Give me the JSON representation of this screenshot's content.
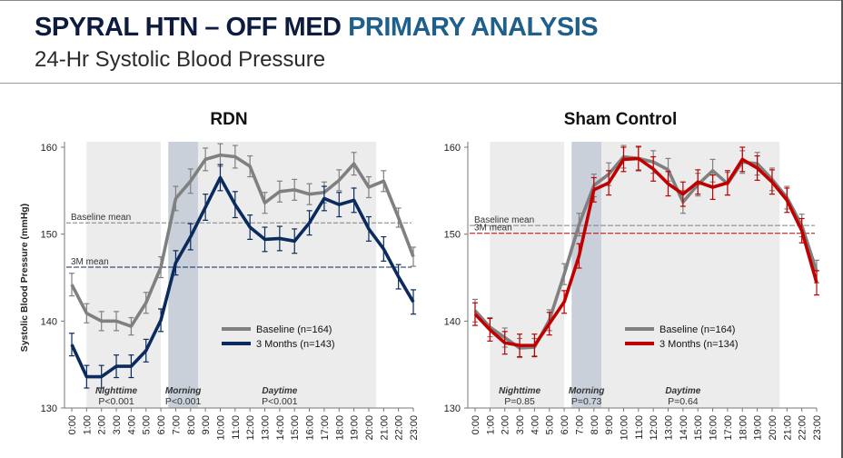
{
  "header": {
    "title_main": "SPYRAL HTN – OFF MED ",
    "title_accent": "PRIMARY ANALYSIS",
    "subtitle": "24-Hr Systolic Blood Pressure"
  },
  "colors": {
    "baseline": "#808080",
    "rdn_3m": "#0b2a5e",
    "sham_3m": "#c00000",
    "shade": "#ececec",
    "morning_shade": "#c9d0da"
  },
  "chart_data": [
    {
      "type": "line",
      "title": "RDN",
      "ylabel": "Systolic  Blood Pressure (mmHg)",
      "ylim": [
        130,
        160
      ],
      "yticks": [
        130,
        140,
        150,
        160
      ],
      "x": [
        "0:00",
        "1:00",
        "2:00",
        "3:00",
        "4:00",
        "5:00",
        "6:00",
        "7:00",
        "8:00",
        "9:00",
        "10:00",
        "11:00",
        "12:00",
        "13:00",
        "14:00",
        "15:00",
        "16:00",
        "17:00",
        "18:00",
        "19:00",
        "20:00",
        "21:00",
        "22:00",
        "23:00"
      ],
      "series": [
        {
          "name": "Baseline (n=164)",
          "color": "#808080",
          "values": [
            144.2,
            140.9,
            140.0,
            140.0,
            139.4,
            142.1,
            146.2,
            154.1,
            156.1,
            158.6,
            159.1,
            158.9,
            157.8,
            153.6,
            154.9,
            155.1,
            154.6,
            154.8,
            156.2,
            158.1,
            155.4,
            156.1,
            151.9,
            147.4
          ],
          "err": [
            1.3,
            1.1,
            1.1,
            1.1,
            1.0,
            1.2,
            1.2,
            1.4,
            1.4,
            1.3,
            1.3,
            1.3,
            1.2,
            1.2,
            1.2,
            1.2,
            1.2,
            1.2,
            1.2,
            1.3,
            1.2,
            1.2,
            1.1,
            1.1
          ]
        },
        {
          "name": "3 Months (n=143)",
          "color": "#0b2a5e",
          "values": [
            137.3,
            133.6,
            133.6,
            134.8,
            134.8,
            136.6,
            140.1,
            146.7,
            149.7,
            153.1,
            156.5,
            153.4,
            150.8,
            149.4,
            149.5,
            149.2,
            151.3,
            154.1,
            153.4,
            153.9,
            150.6,
            148.3,
            145.1,
            142.2
          ],
          "err": [
            1.3,
            1.3,
            1.3,
            1.3,
            1.3,
            1.3,
            1.3,
            1.4,
            1.5,
            1.5,
            1.5,
            1.5,
            1.4,
            1.4,
            1.4,
            1.4,
            1.4,
            1.4,
            1.4,
            1.4,
            1.4,
            1.4,
            1.4,
            1.4
          ]
        }
      ],
      "reference_lines": [
        {
          "label": "Baseline mean",
          "value": 151.3,
          "color": "#808080"
        },
        {
          "label": "3M mean",
          "value": 146.2,
          "color": "#0b2a5e"
        }
      ],
      "periods": [
        {
          "label": "Nighttime",
          "p": "P<0.001"
        },
        {
          "label": "Morning",
          "p": "P<0.001"
        },
        {
          "label": "Daytime",
          "p": "P<0.001"
        }
      ],
      "legend_position": "center-right"
    },
    {
      "type": "line",
      "title": "Sham Control",
      "ylim": [
        130,
        160
      ],
      "yticks": [
        130,
        140,
        150,
        160
      ],
      "x": [
        "0:00",
        "1:00",
        "2:00",
        "3:00",
        "4:00",
        "5:00",
        "6:00",
        "7:00",
        "8:00",
        "9:00",
        "10:00",
        "11:00",
        "12:00",
        "13:00",
        "14:00",
        "15:00",
        "16:00",
        "17:00",
        "18:00",
        "19:00",
        "20:00",
        "21:00",
        "22:00",
        "23:00"
      ],
      "series": [
        {
          "name": "Baseline (n=164)",
          "color": "#808080",
          "values": [
            141.2,
            139.3,
            138.1,
            136.9,
            137.0,
            140.1,
            145.4,
            151.1,
            155.6,
            156.9,
            158.9,
            158.7,
            158.3,
            157.4,
            153.7,
            155.7,
            157.3,
            155.8,
            158.3,
            158.1,
            156.3,
            154.2,
            151.0,
            145.7
          ],
          "err": [
            1.3,
            1.1,
            1.1,
            1.1,
            1.0,
            1.2,
            1.2,
            1.3,
            1.3,
            1.3,
            1.3,
            1.3,
            1.3,
            1.3,
            1.3,
            1.3,
            1.3,
            1.3,
            1.3,
            1.3,
            1.3,
            1.3,
            1.3,
            1.3
          ]
        },
        {
          "name": "3 Months (n=134)",
          "color": "#c00000",
          "values": [
            140.8,
            139.0,
            137.5,
            137.2,
            137.2,
            139.7,
            142.2,
            147.5,
            155.1,
            155.9,
            158.6,
            158.7,
            157.5,
            155.8,
            154.6,
            156.0,
            155.4,
            155.9,
            158.6,
            157.6,
            156.0,
            153.9,
            150.4,
            144.4
          ],
          "err": [
            1.3,
            1.3,
            1.3,
            1.3,
            1.3,
            1.3,
            1.3,
            1.4,
            1.4,
            1.4,
            1.4,
            1.4,
            1.4,
            1.4,
            1.4,
            1.4,
            1.4,
            1.4,
            1.4,
            1.4,
            1.4,
            1.4,
            1.4,
            1.4
          ]
        }
      ],
      "reference_lines": [
        {
          "label": "Baseline mean",
          "value": 151.0,
          "color": "#808080"
        },
        {
          "label": "3M mean",
          "value": 150.1,
          "color": "#c00000"
        }
      ],
      "periods": [
        {
          "label": "Nighttime",
          "p": "P=0.85"
        },
        {
          "label": "Morning",
          "p": "P=0.73"
        },
        {
          "label": "Daytime",
          "p": "P=0.64"
        }
      ],
      "legend_position": "center-right"
    }
  ]
}
